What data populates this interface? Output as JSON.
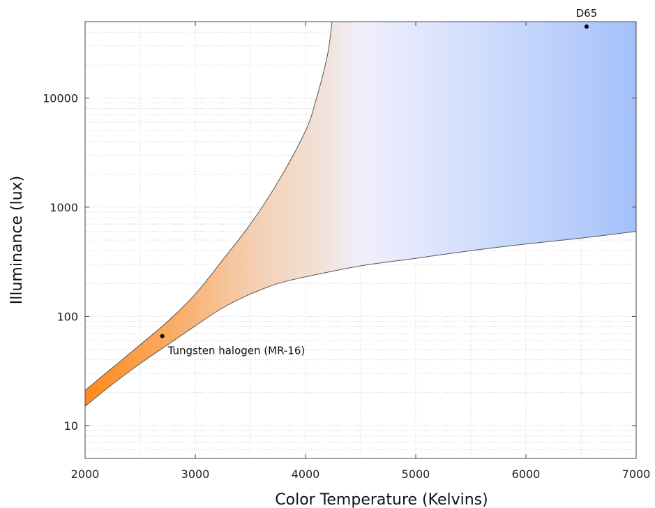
{
  "chart_data": {
    "type": "area",
    "title": "",
    "xlabel": "Color Temperature (Kelvins)",
    "ylabel": "Illuminance (lux)",
    "xlim": [
      2000,
      7000
    ],
    "ylim": [
      5,
      50000
    ],
    "y_scale": "log",
    "grid": true,
    "x_ticks": [
      2000,
      3000,
      4000,
      5000,
      6000,
      7000
    ],
    "y_ticks": [
      10,
      100,
      1000,
      10000
    ],
    "x_tick_labels": [
      "2000",
      "3000",
      "4000",
      "5000",
      "6000",
      "7000"
    ],
    "y_tick_labels": [
      "10",
      "100",
      "1000",
      "10000"
    ],
    "band": {
      "lower": {
        "x": [
          2000,
          2250,
          2500,
          2750,
          3000,
          3250,
          3500,
          3750,
          4000,
          4500,
          5000,
          5500,
          6000,
          6500,
          7000
        ],
        "y": [
          15,
          24,
          37,
          55,
          82,
          120,
          160,
          200,
          230,
          290,
          340,
          400,
          460,
          520,
          600
        ]
      },
      "upper": {
        "x": [
          2000,
          2250,
          2500,
          2750,
          3000,
          3250,
          3500,
          3750,
          4000,
          4100,
          4200,
          4240
        ],
        "y": [
          21,
          34,
          55,
          90,
          160,
          330,
          700,
          1700,
          5000,
          10000,
          25000,
          50000
        ]
      }
    },
    "color_stops": [
      {
        "x": 2000,
        "color": "#ff8a1a"
      },
      {
        "x": 2800,
        "color": "#f9ac66"
      },
      {
        "x": 3500,
        "color": "#f5ceb0"
      },
      {
        "x": 4200,
        "color": "#f1e3db"
      },
      {
        "x": 4500,
        "color": "#f1effd"
      },
      {
        "x": 5500,
        "color": "#d3dffc"
      },
      {
        "x": 6300,
        "color": "#bcd0fb"
      },
      {
        "x": 7000,
        "color": "#a2c0fa"
      }
    ],
    "points": [
      {
        "label": "Tungsten halogen (MR-16)",
        "x": 2700,
        "y": 66,
        "label_position": "below-right"
      },
      {
        "label": "D65",
        "x": 6550,
        "y": 45000,
        "label_position": "above"
      }
    ]
  }
}
